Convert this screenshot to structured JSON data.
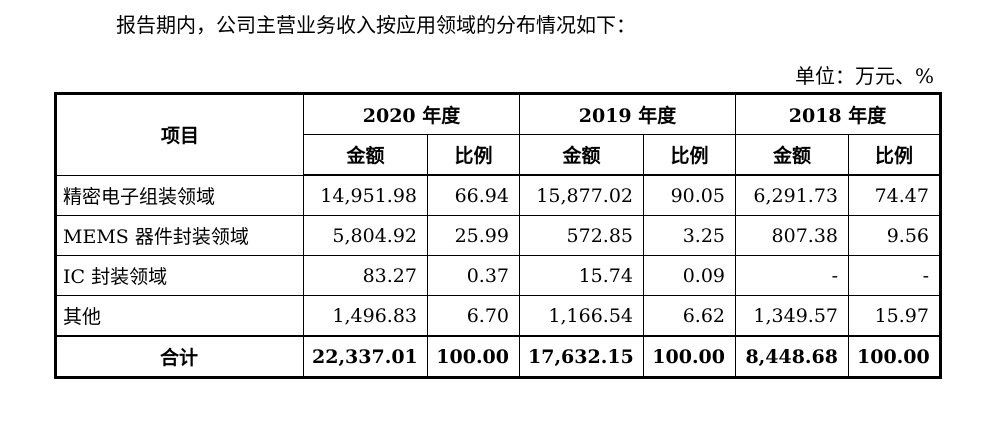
{
  "intro": "报告期内，公司主营业务收入按应用领域的分布情况如下：",
  "unit": "单位：万元、%",
  "table": {
    "header_item": "项目",
    "years": [
      "2020 年度",
      "2019 年度",
      "2018 年度"
    ],
    "sub_amount": "金额",
    "sub_ratio": "比例",
    "rows": [
      {
        "label": "精密电子组装领域",
        "values": [
          "14,951.98",
          "66.94",
          "15,877.02",
          "90.05",
          "6,291.73",
          "74.47"
        ]
      },
      {
        "label": "MEMS 器件封装领域",
        "values": [
          "5,804.92",
          "25.99",
          "572.85",
          "3.25",
          "807.38",
          "9.56"
        ]
      },
      {
        "label": "IC 封装领域",
        "values": [
          "83.27",
          "0.37",
          "15.74",
          "0.09",
          "-",
          "-"
        ]
      },
      {
        "label": "其他",
        "values": [
          "1,496.83",
          "6.70",
          "1,166.54",
          "6.62",
          "1,349.57",
          "15.97"
        ]
      }
    ],
    "total": {
      "label": "合计",
      "values": [
        "22,337.01",
        "100.00",
        "17,632.15",
        "100.00",
        "8,448.68",
        "100.00"
      ]
    }
  }
}
